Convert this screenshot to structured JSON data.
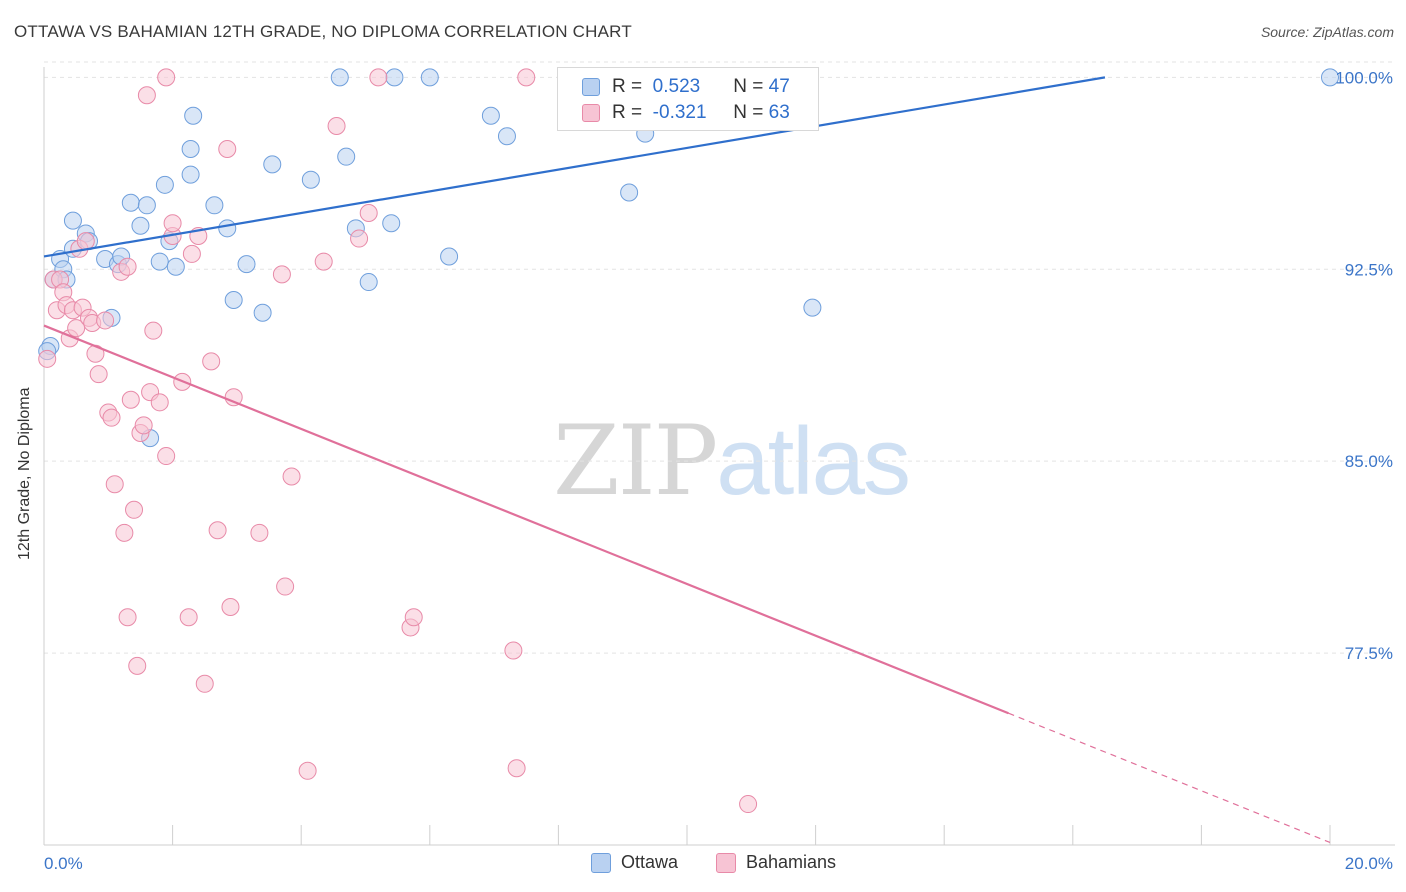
{
  "header": {
    "title": "OTTAWA VS BAHAMIAN 12TH GRADE, NO DIPLOMA CORRELATION CHART",
    "source": "Source: ZipAtlas.com"
  },
  "watermark": {
    "part1": "ZIP",
    "part2": "atlas"
  },
  "legend": {
    "rows": [
      {
        "r_label": "R =",
        "r_value": "0.523",
        "n_label": "N =",
        "n_value": "47"
      },
      {
        "r_label": "R =",
        "r_value": "-0.321",
        "n_label": "N =",
        "n_value": "63"
      }
    ]
  },
  "bottom_legend": {
    "items": [
      "Ottawa",
      "Bahamians"
    ]
  },
  "chart_data": {
    "type": "scatter",
    "title": "OTTAWA VS BAHAMIAN 12TH GRADE, NO DIPLOMA CORRELATION CHART",
    "ylabel": "12th Grade, No Diploma",
    "xlabel": "",
    "x_tick_labels": [
      "0.0%",
      "20.0%"
    ],
    "y_tick_labels": [
      "100.0%",
      "92.5%",
      "85.0%",
      "77.5%"
    ],
    "y_ticks": [
      100.0,
      92.5,
      85.0,
      77.5
    ],
    "xlim": [
      0,
      20
    ],
    "ylim": [
      70.0,
      100.6
    ],
    "grid": true,
    "legend_position": "top-center",
    "colors": {
      "ottawa": "#6f9fdc",
      "ottawa_fill": "#b9d1f1",
      "ottawa_line": "#2f6fcc",
      "bahamians": "#e88aa8",
      "bahamians_fill": "#f7c4d4",
      "bahamians_line": "#e0709a"
    },
    "series": [
      {
        "name": "Ottawa",
        "points": [
          [
            0.1,
            89.5
          ],
          [
            0.15,
            92.1
          ],
          [
            0.25,
            92.9
          ],
          [
            0.3,
            92.5
          ],
          [
            0.35,
            92.1
          ],
          [
            0.45,
            93.3
          ],
          [
            0.45,
            94.4
          ],
          [
            0.65,
            93.9
          ],
          [
            0.7,
            93.6
          ],
          [
            0.95,
            92.9
          ],
          [
            1.05,
            90.6
          ],
          [
            1.15,
            92.7
          ],
          [
            1.2,
            93.0
          ],
          [
            1.35,
            95.1
          ],
          [
            1.5,
            94.2
          ],
          [
            1.6,
            95.0
          ],
          [
            1.65,
            85.9
          ],
          [
            1.8,
            92.8
          ],
          [
            1.88,
            95.8
          ],
          [
            1.95,
            93.6
          ],
          [
            2.05,
            92.6
          ],
          [
            2.28,
            96.2
          ],
          [
            2.32,
            98.5
          ],
          [
            2.28,
            97.2
          ],
          [
            2.65,
            95.0
          ],
          [
            2.85,
            94.1
          ],
          [
            2.95,
            91.3
          ],
          [
            3.15,
            92.7
          ],
          [
            3.4,
            90.8
          ],
          [
            3.55,
            96.6
          ],
          [
            4.15,
            96.0
          ],
          [
            4.6,
            100.0
          ],
          [
            4.7,
            96.9
          ],
          [
            4.85,
            94.1
          ],
          [
            5.05,
            92.0
          ],
          [
            5.4,
            94.3
          ],
          [
            5.45,
            100.0
          ],
          [
            6.0,
            100.0
          ],
          [
            6.3,
            93.0
          ],
          [
            6.95,
            98.5
          ],
          [
            7.2,
            97.7
          ],
          [
            8.2,
            100.0
          ],
          [
            9.1,
            95.5
          ],
          [
            9.35,
            97.8
          ],
          [
            11.95,
            91.0
          ],
          [
            20.0,
            100.0
          ],
          [
            0.05,
            89.3
          ]
        ]
      },
      {
        "name": "Bahamians",
        "points": [
          [
            0.05,
            89.0
          ],
          [
            0.15,
            92.1
          ],
          [
            0.2,
            90.9
          ],
          [
            0.25,
            92.1
          ],
          [
            0.3,
            91.6
          ],
          [
            0.35,
            91.1
          ],
          [
            0.4,
            89.8
          ],
          [
            0.45,
            90.9
          ],
          [
            0.5,
            90.2
          ],
          [
            0.55,
            93.3
          ],
          [
            0.6,
            91.0
          ],
          [
            0.65,
            93.6
          ],
          [
            0.7,
            90.6
          ],
          [
            0.75,
            90.4
          ],
          [
            0.8,
            89.2
          ],
          [
            0.85,
            88.4
          ],
          [
            0.95,
            90.5
          ],
          [
            1.0,
            86.9
          ],
          [
            1.05,
            86.7
          ],
          [
            1.1,
            84.1
          ],
          [
            1.2,
            92.4
          ],
          [
            1.25,
            82.2
          ],
          [
            1.3,
            78.9
          ],
          [
            1.3,
            92.6
          ],
          [
            1.35,
            87.4
          ],
          [
            1.4,
            83.1
          ],
          [
            1.45,
            77.0
          ],
          [
            1.5,
            86.1
          ],
          [
            1.55,
            86.4
          ],
          [
            1.6,
            99.3
          ],
          [
            1.65,
            87.7
          ],
          [
            1.7,
            90.1
          ],
          [
            1.8,
            87.3
          ],
          [
            1.9,
            85.2
          ],
          [
            1.9,
            100.0
          ],
          [
            2.0,
            93.8
          ],
          [
            2.0,
            94.3
          ],
          [
            2.15,
            88.1
          ],
          [
            2.25,
            78.9
          ],
          [
            2.3,
            93.1
          ],
          [
            2.4,
            93.8
          ],
          [
            2.5,
            76.3
          ],
          [
            2.6,
            88.9
          ],
          [
            2.7,
            82.3
          ],
          [
            2.85,
            97.2
          ],
          [
            2.9,
            79.3
          ],
          [
            2.95,
            87.5
          ],
          [
            3.35,
            82.2
          ],
          [
            3.7,
            92.3
          ],
          [
            3.75,
            80.1
          ],
          [
            3.85,
            84.4
          ],
          [
            4.1,
            72.9
          ],
          [
            4.35,
            92.8
          ],
          [
            4.55,
            98.1
          ],
          [
            4.9,
            93.7
          ],
          [
            5.05,
            94.7
          ],
          [
            5.2,
            100.0
          ],
          [
            5.7,
            78.5
          ],
          [
            5.75,
            78.9
          ],
          [
            7.3,
            77.6
          ],
          [
            7.35,
            73.0
          ],
          [
            7.5,
            100.0
          ],
          [
            10.95,
            71.6
          ]
        ]
      }
    ],
    "trend_lines": [
      {
        "name": "Ottawa",
        "from": [
          0,
          93.0
        ],
        "to": [
          16.5,
          100.0
        ],
        "dashed_from_x": null
      },
      {
        "name": "Bahamians",
        "from": [
          0,
          90.3
        ],
        "to": [
          20,
          70.1
        ],
        "dashed_from_x": 15.0
      }
    ]
  }
}
